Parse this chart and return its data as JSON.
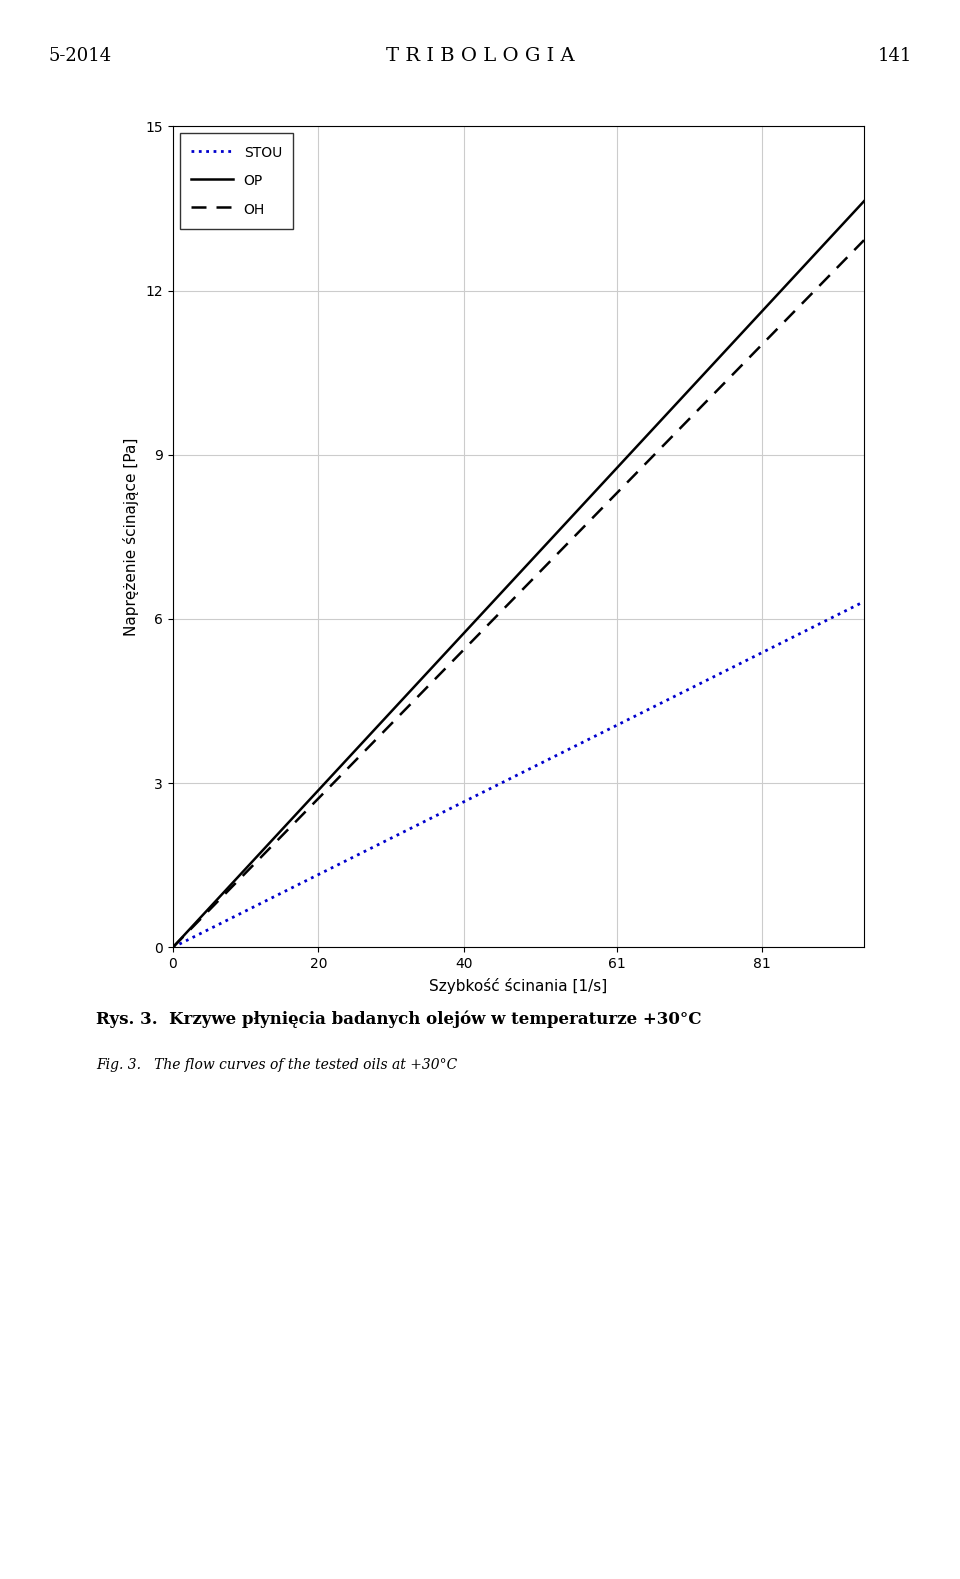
{
  "title": "",
  "xlabel": "Szybkość ścinania [1/s]",
  "ylabel": "Naprężenie ścinające [Pa]",
  "xlim": [
    0,
    95
  ],
  "ylim": [
    0,
    15
  ],
  "xticks": [
    0,
    20,
    40,
    61,
    81
  ],
  "yticks": [
    0,
    3,
    6,
    9,
    12,
    15
  ],
  "lines": {
    "STOU": {
      "slope": 0.0665,
      "intercept": 0.0,
      "color": "#0000CD",
      "linestyle": "dotted",
      "linewidth": 2.0
    },
    "OP": {
      "slope": 0.1435,
      "intercept": 0.0,
      "color": "#000000",
      "linestyle": "solid",
      "linewidth": 1.8
    },
    "OH": {
      "slope": 0.136,
      "intercept": 0.0,
      "color": "#000000",
      "linestyle": "dashed",
      "linewidth": 1.8
    }
  },
  "legend_loc": "upper left",
  "grid": true,
  "grid_color": "#cccccc",
  "background_color": "#ffffff",
  "figure_background": "#ffffff",
  "caption_line1": "Rys. 3.  Krzywe płynięcia badanych olejów w temperaturze +30°C",
  "caption_line2": "Fig. 3.   The flow curves of the tested oils at +30°C"
}
